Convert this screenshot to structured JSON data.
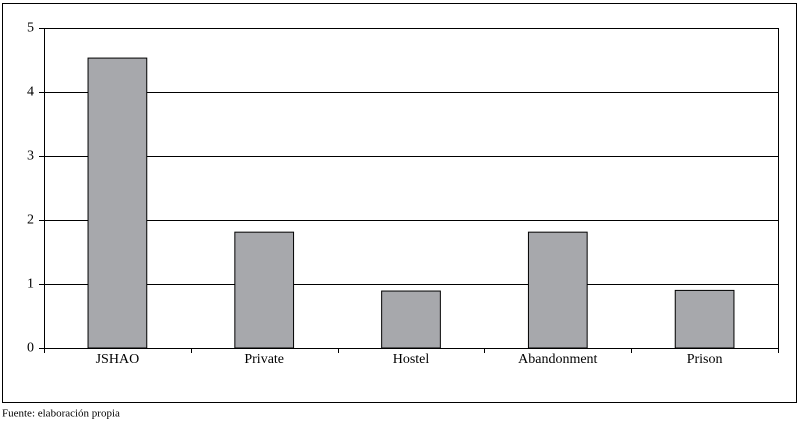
{
  "chart_data": {
    "type": "bar",
    "categories": [
      "JSHAO",
      "Private",
      "Hostel",
      "Abandonment",
      "Prison"
    ],
    "values": [
      4.53,
      1.81,
      0.89,
      1.81,
      0.9
    ],
    "color": "#a7a8ac",
    "ylim": [
      0,
      5
    ],
    "yticks": [
      0,
      1,
      2,
      3,
      4,
      5
    ],
    "grid": true,
    "source": "Fuente: elaboración propia"
  }
}
